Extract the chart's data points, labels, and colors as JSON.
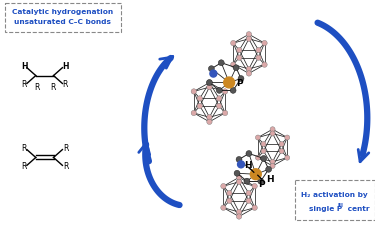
{
  "bg_color": "#ffffff",
  "arrow_color": "#1e4fc2",
  "text_color_blue": "#1e4fc2",
  "text_color_black": "#000000",
  "box1_text_line1": "Catalytic hydrogenation",
  "box1_text_line2": "unsaturated C–C bonds",
  "box2_text_line1": "H₂ activation by",
  "box2_text_line2_a": "single P",
  "box2_superscript": "III",
  "box2_text_line2_b": " centr",
  "figsize": [
    3.76,
    2.36
  ],
  "dpi": 100,
  "pink_color": "#dba8a8",
  "dark_gray": "#555555",
  "orange_color": "#cc8822",
  "blue_node": "#3355bb",
  "bond_color": "#222222"
}
